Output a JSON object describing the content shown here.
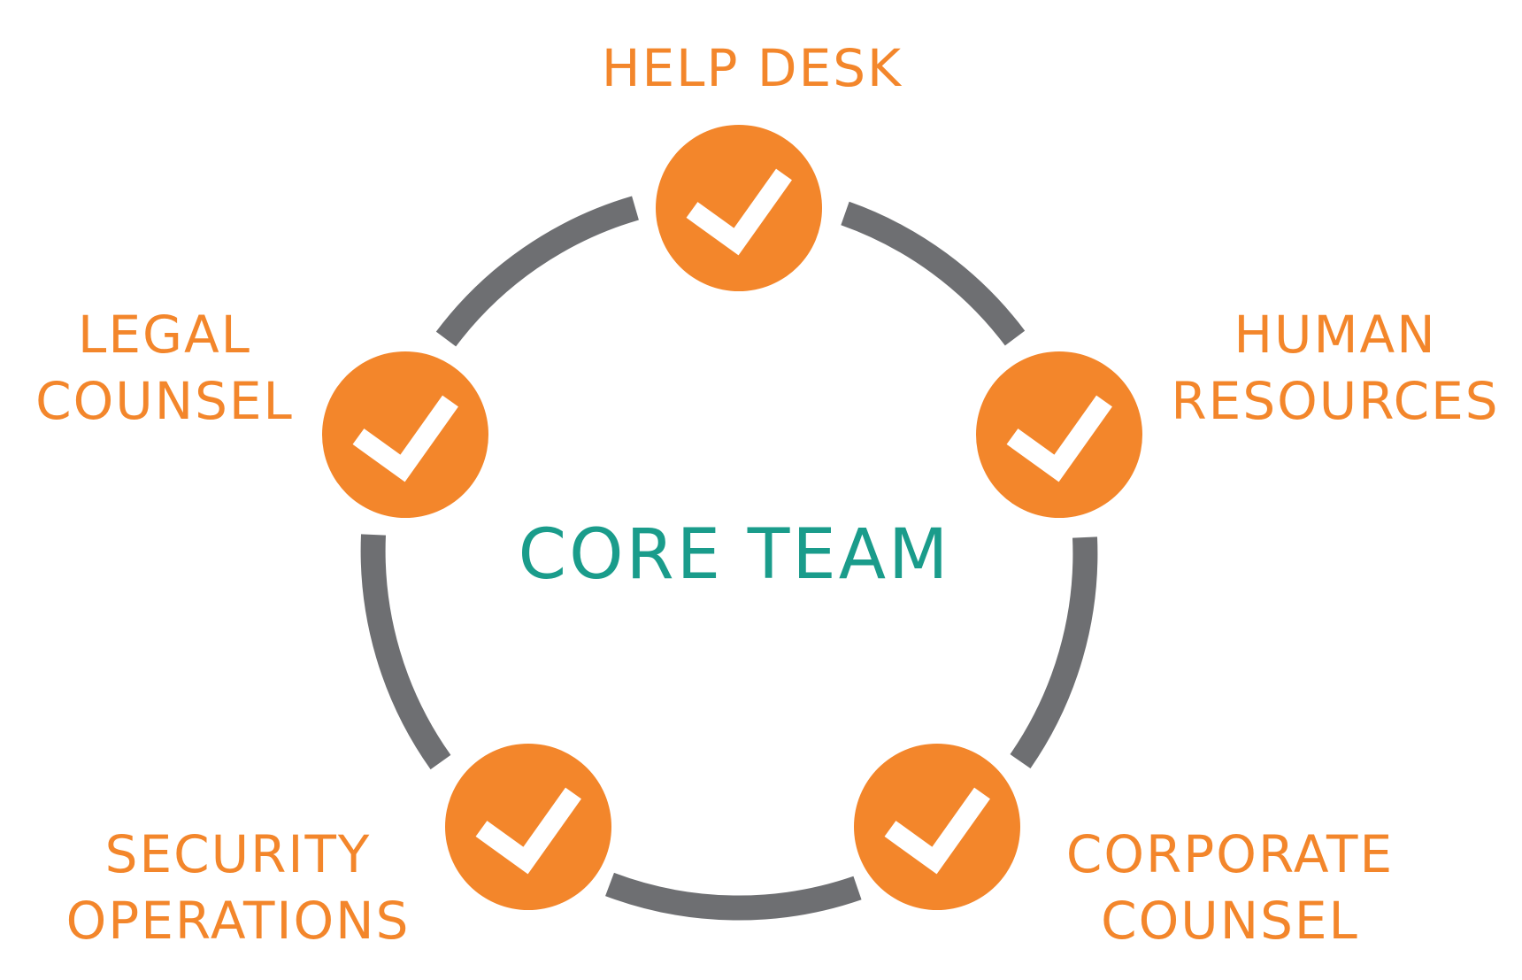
{
  "diagram": {
    "center_label": "CORE TEAM",
    "nodes": [
      {
        "id": "help-desk",
        "lines": [
          "HELP DESK"
        ]
      },
      {
        "id": "human-resources",
        "lines": [
          "HUMAN",
          "RESOURCES"
        ]
      },
      {
        "id": "corporate-counsel",
        "lines": [
          "CORPORATE",
          "COUNSEL"
        ]
      },
      {
        "id": "security-operations",
        "lines": [
          "SECURITY",
          "OPERATIONS"
        ]
      },
      {
        "id": "legal-counsel",
        "lines": [
          "LEGAL",
          "COUNSEL"
        ]
      }
    ],
    "node_icon": "checkmark-icon",
    "colors": {
      "node_fill": "#F3862B",
      "node_label": "#F3862B",
      "center_label": "#1A9C8B",
      "ring": "#6E6F72",
      "check": "#FFFFFF"
    }
  }
}
